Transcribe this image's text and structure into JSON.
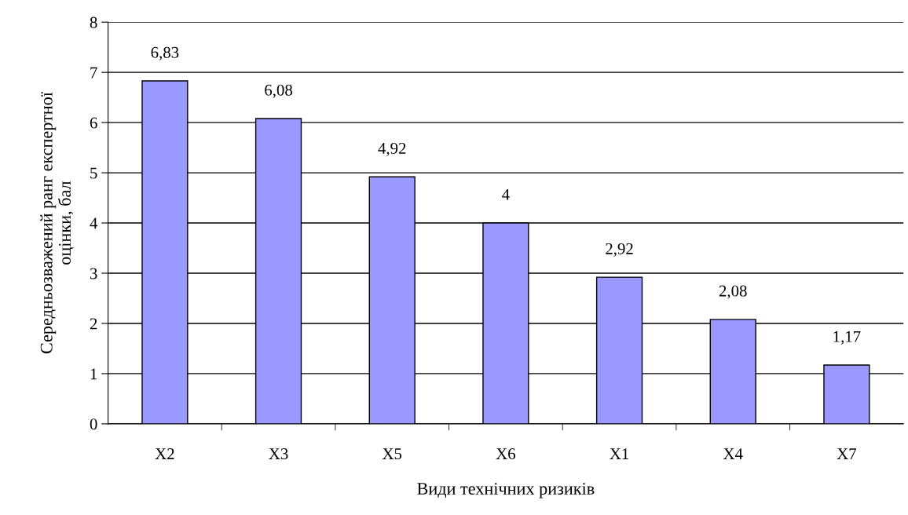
{
  "chart_data": {
    "type": "bar",
    "xlabel": "Види технічних ризиків",
    "ylabel": "Середньозважений ранг експертної\nоцінки, бал",
    "categories": [
      "X2",
      "X3",
      "X5",
      "X6",
      "X1",
      "X4",
      "X7"
    ],
    "values": [
      6.83,
      6.08,
      4.92,
      4,
      2.92,
      2.08,
      1.17
    ],
    "value_labels": [
      "6,83",
      "6,08",
      "4,92",
      "4",
      "2,92",
      "2,08",
      "1,17"
    ],
    "color": "#9999ff",
    "ylim": [
      0,
      8
    ],
    "yticks": [
      0,
      1,
      2,
      3,
      4,
      5,
      6,
      7,
      8
    ],
    "grid": "y",
    "legend": false
  }
}
